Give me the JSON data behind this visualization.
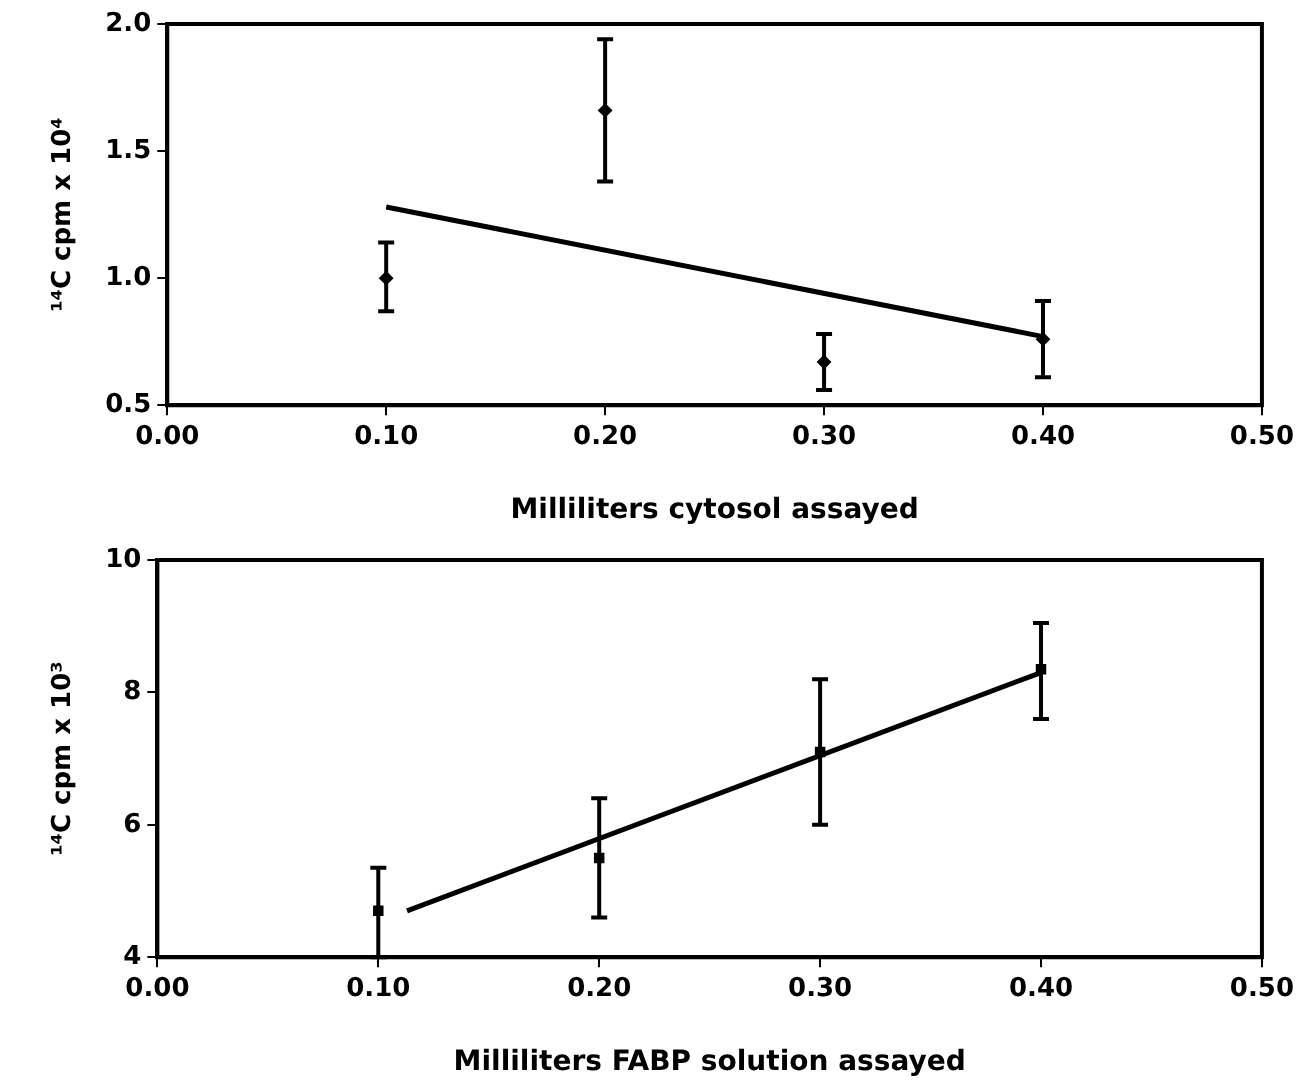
{
  "chart_data": [
    {
      "type": "scatter",
      "xlabel": "Milliliters cytosol assayed",
      "ylabel": "¹⁴C cpm x 10⁴",
      "xlim": [
        0,
        0.5
      ],
      "xticks": [
        {
          "value": 0,
          "label": "0.00"
        },
        {
          "value": 0.1,
          "label": "0.10"
        },
        {
          "value": 0.2,
          "label": "0.20"
        },
        {
          "value": 0.3,
          "label": "0.30"
        },
        {
          "value": 0.4,
          "label": "0.40"
        },
        {
          "value": 0.5,
          "label": "0.50"
        }
      ],
      "ylim": [
        0.5,
        2.0
      ],
      "yticks": [
        {
          "value": 0.5,
          "label": "0.5"
        },
        {
          "value": 1.0,
          "label": "1.0"
        },
        {
          "value": 1.5,
          "label": "1.5"
        },
        {
          "value": 2.0,
          "label": "2.0"
        }
      ],
      "grid": false,
      "legend": false,
      "series": [
        {
          "color": "#000000",
          "marker": "diamond",
          "x": [
            0.1,
            0.2,
            0.3,
            0.4
          ],
          "values": [
            1.0,
            1.66,
            0.67,
            0.76
          ],
          "errors": [
            [
              0.87,
              1.14
            ],
            [
              1.38,
              1.94
            ],
            [
              0.56,
              0.78
            ],
            [
              0.61,
              0.91
            ]
          ]
        },
        {
          "type": "line",
          "color": "#000000",
          "x": [
            0.1,
            0.4
          ],
          "values": [
            1.28,
            0.77
          ]
        }
      ]
    },
    {
      "type": "scatter",
      "xlabel": "Milliliters FABP solution assayed",
      "ylabel": "¹⁴C cpm x 10³",
      "xlim": [
        0,
        0.5
      ],
      "xticks": [
        {
          "value": 0,
          "label": "0.00"
        },
        {
          "value": 0.1,
          "label": "0.10"
        },
        {
          "value": 0.2,
          "label": "0.20"
        },
        {
          "value": 0.3,
          "label": "0.30"
        },
        {
          "value": 0.4,
          "label": "0.40"
        },
        {
          "value": 0.5,
          "label": "0.50"
        }
      ],
      "ylim": [
        4,
        10
      ],
      "yticks": [
        4,
        6,
        8,
        10
      ],
      "grid": false,
      "legend": false,
      "series": [
        {
          "color": "#000000",
          "marker": "square",
          "x": [
            0.1,
            0.2,
            0.3,
            0.4
          ],
          "values": [
            4.7,
            5.5,
            7.1,
            8.35
          ],
          "errors": [
            [
              4.0,
              5.35
            ],
            [
              4.6,
              6.4
            ],
            [
              6.0,
              8.2
            ],
            [
              7.6,
              9.05
            ]
          ]
        },
        {
          "type": "line",
          "color": "#000000",
          "x": [
            0.113,
            0.4
          ],
          "values": [
            4.7,
            8.3
          ]
        }
      ]
    }
  ]
}
